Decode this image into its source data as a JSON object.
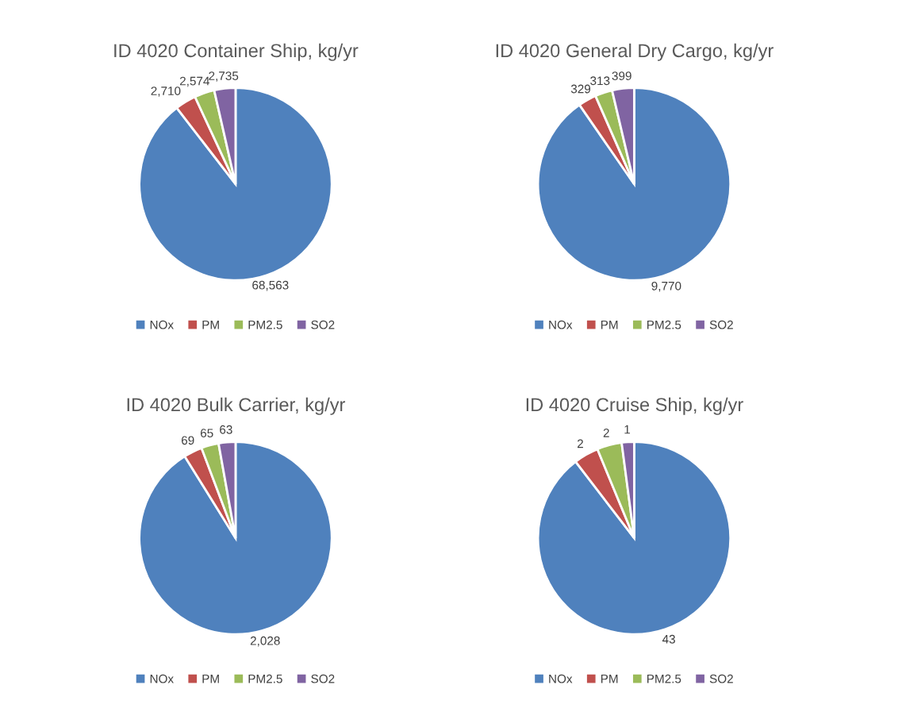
{
  "chart_data": [
    {
      "type": "pie",
      "title": "ID 4020 Container Ship, kg/yr",
      "categories": [
        "NOx",
        "PM",
        "PM2.5",
        "SO2"
      ],
      "values": [
        68563,
        2710,
        2574,
        2735
      ],
      "colors": [
        "#4f81bd",
        "#c0504d",
        "#9bbb59",
        "#8064a2"
      ],
      "value_labels": [
        "68,563",
        "2,710",
        "2,574",
        "2,735"
      ],
      "legend": "bottom"
    },
    {
      "type": "pie",
      "title": "ID 4020 General Dry Cargo, kg/yr",
      "categories": [
        "NOx",
        "PM",
        "PM2.5",
        "SO2"
      ],
      "values": [
        9770,
        329,
        313,
        399
      ],
      "colors": [
        "#4f81bd",
        "#c0504d",
        "#9bbb59",
        "#8064a2"
      ],
      "value_labels": [
        "9,770",
        "329",
        "313",
        "399"
      ],
      "legend": "bottom"
    },
    {
      "type": "pie",
      "title": "ID 4020 Bulk Carrier, kg/yr",
      "categories": [
        "NOx",
        "PM",
        "PM2.5",
        "SO2"
      ],
      "values": [
        2028,
        69,
        65,
        63
      ],
      "colors": [
        "#4f81bd",
        "#c0504d",
        "#9bbb59",
        "#8064a2"
      ],
      "value_labels": [
        "2,028",
        "69",
        "65",
        "63"
      ],
      "legend": "bottom"
    },
    {
      "type": "pie",
      "title": "ID 4020 Cruise Ship, kg/yr",
      "categories": [
        "NOx",
        "PM",
        "PM2.5",
        "SO2"
      ],
      "values": [
        43,
        2,
        2,
        1
      ],
      "colors": [
        "#4f81bd",
        "#c0504d",
        "#9bbb59",
        "#8064a2"
      ],
      "value_labels": [
        "43",
        "2",
        "2",
        "1"
      ],
      "legend": "bottom"
    }
  ]
}
